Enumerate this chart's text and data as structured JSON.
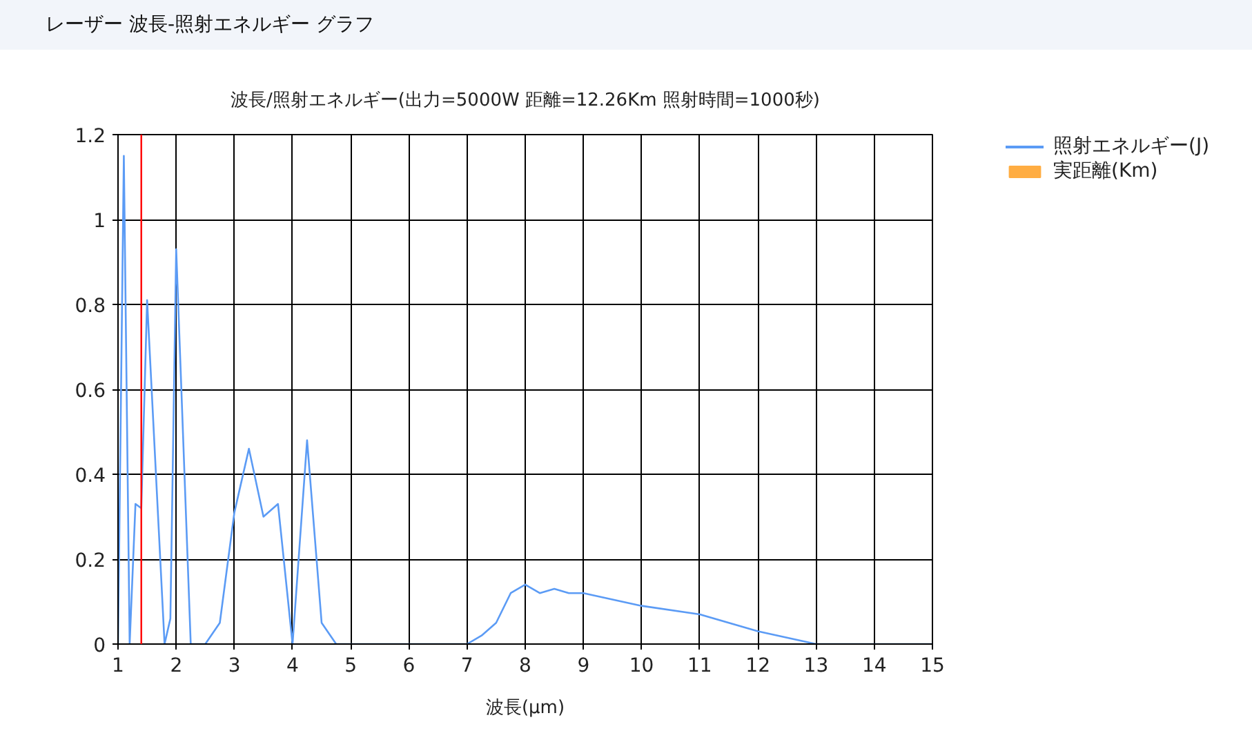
{
  "chart_data": {
    "type": "line",
    "title": "波長/照射エネルギー(出力=5000W 距離=12.26Km 照射時間=1000秒)",
    "annotations": [
      "レーザー 波長-照射エネルギー グラフ"
    ],
    "xlabel": "波長(µm)",
    "xlim": [
      1,
      15
    ],
    "ylim": [
      0,
      1.2
    ],
    "xticks": [
      1,
      2,
      3,
      4,
      5,
      6,
      7,
      8,
      9,
      10,
      11,
      12,
      13,
      14,
      15
    ],
    "yticks": [
      0,
      0.2,
      0.4,
      0.6,
      0.8,
      1,
      1.2
    ],
    "grid": true,
    "legend": "top right",
    "ref_lines": [
      {
        "axis": "x",
        "value": 1.4,
        "color": "#ff0000"
      }
    ],
    "series": [
      {
        "name": "照射エネルギー(J)",
        "color": "#5b9bf5",
        "x": [
          1.0,
          1.1,
          1.2,
          1.3,
          1.4,
          1.5,
          1.8,
          1.9,
          2.0,
          2.25,
          2.5,
          2.75,
          3.0,
          3.25,
          3.5,
          3.75,
          4.0,
          4.25,
          4.5,
          4.75,
          5.0,
          6.0,
          7.0,
          7.25,
          7.5,
          7.75,
          8.0,
          8.25,
          8.5,
          8.75,
          9.0,
          10.0,
          11.0,
          12.0,
          13.0,
          14.0,
          15.0
        ],
        "values": [
          0,
          1.15,
          0,
          0.33,
          0.32,
          0.81,
          0,
          0.06,
          0.93,
          0,
          0,
          0.05,
          0.31,
          0.46,
          0.3,
          0.33,
          0,
          0.48,
          0.05,
          0,
          0,
          0,
          0,
          0.02,
          0.05,
          0.12,
          0.14,
          0.12,
          0.13,
          0.12,
          0.12,
          0.09,
          0.07,
          0.03,
          0,
          0,
          0
        ]
      },
      {
        "name": "実距離(Km)",
        "type": "bar",
        "color": "#ffad42"
      }
    ]
  }
}
